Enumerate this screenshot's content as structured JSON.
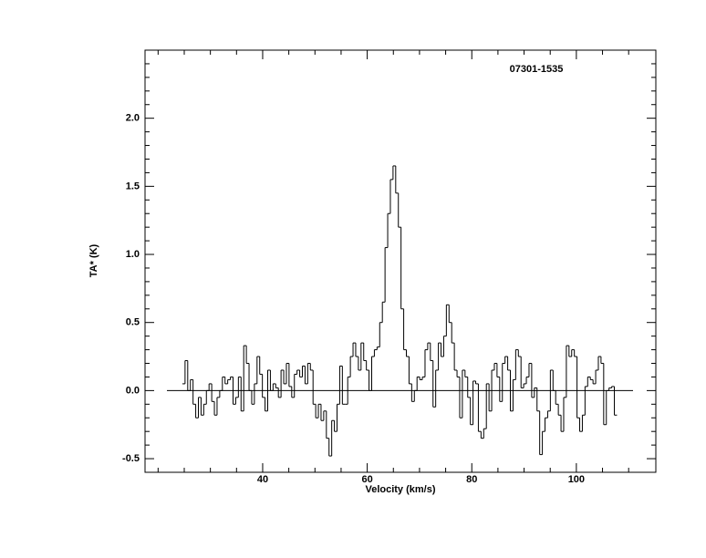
{
  "chart_data": {
    "type": "step",
    "title": "07301-1535",
    "xlabel": "Velocity (km/s)",
    "ylabel": "TA* (K)",
    "xlim": [
      17.5,
      115.2
    ],
    "ylim": [
      -0.6,
      2.5
    ],
    "xticks": [
      40,
      60,
      80,
      100
    ],
    "xminorticks": [
      20,
      25,
      30,
      35,
      45,
      50,
      55,
      65,
      70,
      75,
      85,
      90,
      95,
      105,
      110
    ],
    "yticks": [
      -0.5,
      {
        "value": 0,
        "label": "0.0"
      },
      0.5,
      {
        "value": 1,
        "label": "1.0"
      },
      1.5,
      {
        "value": 2,
        "label": "2.0"
      }
    ],
    "yminorticks": [
      -0.4,
      -0.3,
      -0.2,
      -0.1,
      0.1,
      0.2,
      0.3,
      0.4,
      0.6,
      0.7,
      0.8,
      0.9,
      1.1,
      1.2,
      1.3,
      1.4,
      1.6,
      1.7,
      1.8,
      1.9,
      2.1,
      2.2,
      2.3,
      2.4
    ],
    "baseline": 0,
    "color": "#000000",
    "x": [
      24.9,
      25.41,
      25.92,
      26.43,
      26.94,
      27.45,
      27.96,
      28.47,
      28.98,
      29.49,
      30.0,
      30.51,
      31.02,
      31.53,
      32.04,
      32.55,
      33.06,
      33.57,
      34.08,
      34.59,
      35.1,
      35.61,
      36.12,
      36.63,
      37.14,
      37.65,
      38.16,
      38.67,
      39.18,
      39.69,
      40.2,
      40.71,
      41.22,
      41.73,
      42.24,
      42.75,
      43.26,
      43.77,
      44.28,
      44.79,
      45.3,
      45.81,
      46.32,
      46.83,
      47.34,
      47.85,
      48.36,
      48.87,
      49.38,
      49.89,
      50.4,
      50.91,
      51.42,
      51.93,
      52.44,
      52.95,
      53.46,
      53.97,
      54.48,
      54.99,
      55.5,
      56.01,
      56.52,
      57.03,
      57.54,
      58.05,
      58.56,
      59.07,
      59.58,
      60.09,
      60.6,
      61.11,
      61.62,
      62.13,
      62.64,
      63.15,
      63.66,
      64.17,
      64.68,
      65.19,
      65.7,
      66.21,
      66.72,
      67.23,
      67.74,
      68.25,
      68.76,
      69.27,
      69.78,
      70.29,
      70.8,
      71.31,
      71.82,
      72.33,
      72.84,
      73.35,
      73.86,
      74.37,
      74.88,
      75.39,
      75.9,
      76.41,
      76.92,
      77.43,
      77.94,
      78.45,
      78.96,
      79.47,
      79.98,
      80.49,
      81.0,
      81.51,
      82.02,
      82.53,
      83.04,
      83.55,
      84.06,
      84.57,
      85.08,
      85.59,
      86.1,
      86.61,
      87.12,
      87.63,
      88.14,
      88.65,
      89.16,
      89.67,
      90.18,
      90.69,
      91.2,
      91.71,
      92.22,
      92.73,
      93.24,
      93.75,
      94.26,
      94.77,
      95.28,
      95.79,
      96.3,
      96.81,
      97.32,
      97.83,
      98.34,
      98.85,
      99.36,
      99.87,
      100.38,
      100.89,
      101.4,
      101.91,
      102.42,
      102.93,
      103.44,
      103.95,
      104.46,
      104.97,
      105.48,
      105.99,
      106.5,
      107.01,
      107.52
    ],
    "values": [
      0.05,
      0.22,
      0.0,
      0.08,
      -0.1,
      -0.2,
      -0.05,
      -0.18,
      -0.1,
      0.0,
      0.05,
      -0.08,
      -0.18,
      -0.05,
      0,
      0.1,
      0.05,
      0.08,
      0.1,
      -0.1,
      -0.05,
      0.1,
      -0.15,
      0.33,
      0.2,
      0,
      -0.1,
      0.05,
      0.25,
      0.12,
      -0.05,
      -0.15,
      0.15,
      0,
      0.05,
      0.02,
      -0.05,
      0.15,
      0.05,
      0.2,
      0.03,
      -0.05,
      0.12,
      0.15,
      0.1,
      0.18,
      0.05,
      0.2,
      0.15,
      -0.1,
      -0.2,
      -0.1,
      -0.22,
      -0.15,
      -0.35,
      -0.48,
      -0.22,
      -0.3,
      -0.1,
      0.18,
      -0.1,
      -0.1,
      0.1,
      0.25,
      0.35,
      0.25,
      0.15,
      0.35,
      0.22,
      0.15,
      0,
      0.25,
      0.3,
      0.32,
      0.5,
      0.65,
      1.05,
      1.3,
      1.55,
      1.65,
      1.45,
      1.2,
      0.6,
      0.3,
      0.25,
      0.05,
      -0.08,
      0,
      0.1,
      0.08,
      0.1,
      0.3,
      0.35,
      0.22,
      -0.12,
      0.15,
      0.35,
      0.25,
      0.4,
      0.63,
      0.5,
      0.35,
      0.15,
      0.1,
      -0.2,
      0.15,
      0.1,
      -0.05,
      -0.25,
      0.07,
      0.05,
      -0.3,
      -0.35,
      -0.28,
      0.05,
      -0.15,
      0.15,
      0.2,
      0.1,
      -0.08,
      0.2,
      0.25,
      0.15,
      -0.15,
      0.08,
      0.3,
      0.25,
      0.02,
      0.05,
      0.1,
      0.2,
      -0.05,
      0.02,
      -0.15,
      -0.47,
      -0.3,
      -0.2,
      -0.15,
      0.15,
      0,
      -0.1,
      -0.18,
      -0.3,
      -0.05,
      0.33,
      0.25,
      0.3,
      0.25,
      -0.2,
      -0.3,
      -0.18,
      0.03,
      0.1,
      0.08,
      0.05,
      0.15,
      0.25,
      0.2,
      -0.25,
      0,
      0.02,
      0.03,
      -0.18
    ]
  }
}
